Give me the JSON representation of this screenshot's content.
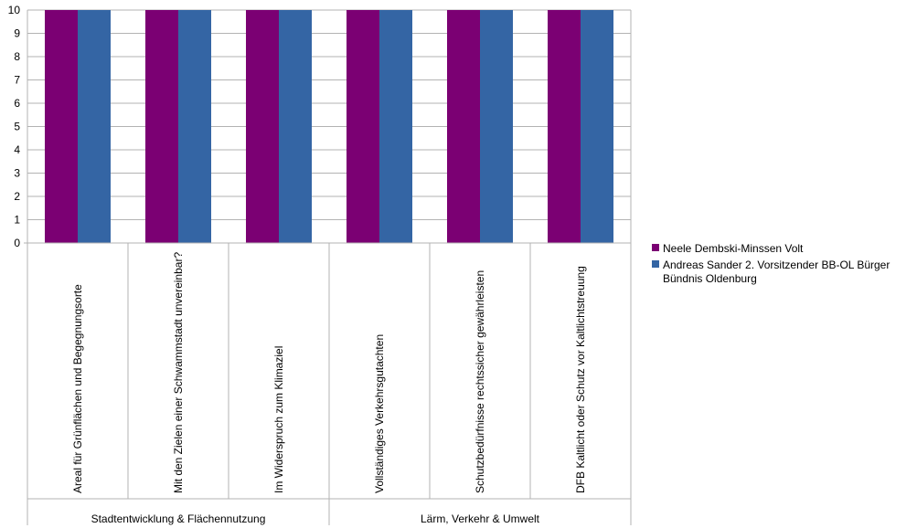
{
  "chart_data": {
    "type": "bar",
    "title": "",
    "xlabel": "",
    "ylabel": "",
    "ylim": [
      0,
      10
    ],
    "yticks": [
      "0",
      "1",
      "2",
      "3",
      "4",
      "5",
      "6",
      "7",
      "8",
      "9",
      "10"
    ],
    "grid": true,
    "legend_position": "right",
    "categories": [
      "Areal für Grünflächen und Begegnungsorte",
      "Mit den Zielen einer Schwammstadt unvereinbar?",
      "Im Widerspruch zum Klimaziel",
      "Vollständiges Verkehrsgutachten",
      "Schutzbedürfnisse rechtssicher gewährleisten",
      "DFB Kaltlicht oder Schutz vor Kaltlichtstreuung"
    ],
    "groups": [
      {
        "label": "Stadtentwicklung & Flächennutzung",
        "span": [
          0,
          2
        ]
      },
      {
        "label": "Lärm, Verkehr & Umwelt",
        "span": [
          3,
          5
        ]
      }
    ],
    "series": [
      {
        "name": "Neele Dembski-Minssen Volt",
        "color": "#7b0073",
        "values": [
          10,
          10,
          10,
          10,
          10,
          10
        ]
      },
      {
        "name": "Andreas Sander     2. Vorsitzender BB-OL Bürger Bündnis Oldenburg",
        "color": "#3465a4",
        "values": [
          10,
          10,
          10,
          10,
          10,
          10
        ]
      }
    ],
    "legend_lines": [
      [
        "Neele Dembski-Minssen Volt"
      ],
      [
        "Andreas Sander     2. Vorsitzender BB-OL Bürger",
        "Bündnis Oldenburg"
      ]
    ]
  }
}
